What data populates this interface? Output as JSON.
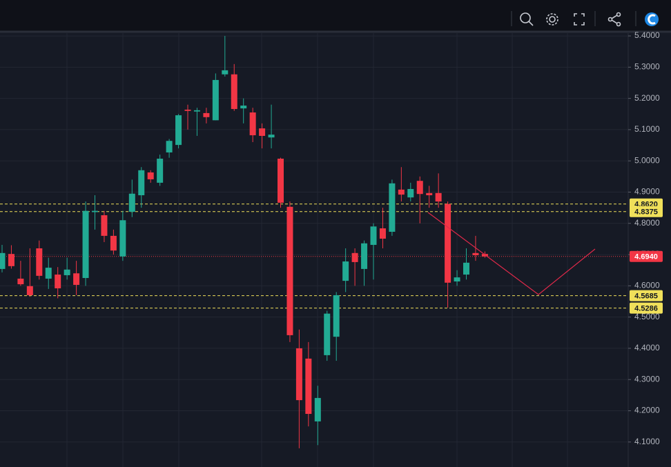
{
  "chart_data": {
    "type": "candlestick",
    "categories": [
      null,
      null,
      null,
      null,
      null,
      null,
      null,
      null,
      null,
      null,
      null,
      null,
      null,
      null,
      null,
      null,
      null,
      null,
      null,
      null,
      null,
      null,
      null,
      null,
      null,
      null,
      null,
      null,
      null,
      null,
      null,
      null,
      null,
      null,
      null,
      null,
      null,
      null,
      null,
      null,
      null,
      null,
      null,
      null,
      null,
      null,
      null,
      null,
      null,
      null,
      null,
      null,
      null
    ],
    "open": [
      4.654,
      4.702,
      4.623,
      4.599,
      4.72,
      4.623,
      4.636,
      4.634,
      4.64,
      4.625,
      4.836,
      4.826,
      4.76,
      4.694,
      4.837,
      4.89,
      4.963,
      4.93,
      5.027,
      5.051,
      5.164,
      5.158,
      5.153,
      5.13,
      5.277,
      5.277,
      5.168,
      5.155,
      5.104,
      5.075,
      5.007,
      4.853,
      4.4,
      4.367,
      4.166,
      4.378,
      4.437,
      4.616,
      4.705,
      4.654,
      4.731,
      4.784,
      4.773,
      4.908,
      4.883,
      4.936,
      4.897,
      4.897,
      4.862,
      4.614,
      4.636,
      4.705,
      4.702
    ],
    "high": [
      4.731,
      4.73,
      4.68,
      4.72,
      4.745,
      4.69,
      4.66,
      4.69,
      4.68,
      4.87,
      4.89,
      4.84,
      4.78,
      4.84,
      4.94,
      4.98,
      4.97,
      5.02,
      5.07,
      5.15,
      5.18,
      5.17,
      5.17,
      5.28,
      5.4,
      5.31,
      5.2,
      5.17,
      5.12,
      5.18,
      5.01,
      4.87,
      4.46,
      4.42,
      4.28,
      4.52,
      4.58,
      4.72,
      4.72,
      4.745,
      4.8,
      4.85,
      4.94,
      4.98,
      4.93,
      4.95,
      4.92,
      4.96,
      4.87,
      4.65,
      4.72,
      4.76,
      4.71
    ],
    "low": [
      4.643,
      4.655,
      4.6,
      4.565,
      4.62,
      4.59,
      4.56,
      4.62,
      4.57,
      4.6,
      4.78,
      4.74,
      4.7,
      4.68,
      4.82,
      4.85,
      4.93,
      4.92,
      5.01,
      5.04,
      5.1,
      5.08,
      5.12,
      5.13,
      5.27,
      5.16,
      5.12,
      5.06,
      5.04,
      5.04,
      4.85,
      4.42,
      4.08,
      4.15,
      4.09,
      4.36,
      4.36,
      4.58,
      4.6,
      4.6,
      4.62,
      4.72,
      4.76,
      4.87,
      4.87,
      4.8,
      4.85,
      4.85,
      4.53,
      4.6,
      4.62,
      4.68,
      4.69
    ],
    "close": [
      4.705,
      4.663,
      4.605,
      4.57,
      4.632,
      4.658,
      4.592,
      4.652,
      4.603,
      4.84,
      4.84,
      4.76,
      4.713,
      4.81,
      4.895,
      4.97,
      4.941,
      5.007,
      5.064,
      5.146,
      5.16,
      5.162,
      5.14,
      5.259,
      5.29,
      5.166,
      5.177,
      5.082,
      5.08,
      5.084,
      4.866,
      4.442,
      4.234,
      4.19,
      4.241,
      4.511,
      4.57,
      4.678,
      4.676,
      4.736,
      4.79,
      4.751,
      4.928,
      4.892,
      4.91,
      4.894,
      4.89,
      4.87,
      4.61,
      4.627,
      4.674,
      4.698,
      4.694
    ],
    "up_color": "#22ab94",
    "down_color": "#f23645",
    "ylim": [
      4.02,
      5.409
    ],
    "yticks": [
      {
        "value": 4.1,
        "label": "4.1000"
      },
      {
        "value": 4.2,
        "label": "4.2000"
      },
      {
        "value": 4.3,
        "label": "4.3000"
      },
      {
        "value": 4.4,
        "label": "4.4000"
      },
      {
        "value": 4.5,
        "label": "4.5000"
      },
      {
        "value": 4.6,
        "label": "4.6000"
      },
      {
        "value": 4.7,
        "label": "4.7000"
      },
      {
        "value": 4.8,
        "label": "4.8000"
      },
      {
        "value": 4.9,
        "label": "4.9000"
      },
      {
        "value": 5.0,
        "label": "5.0000"
      },
      {
        "value": 5.1,
        "label": "5.1000"
      },
      {
        "value": 5.2,
        "label": "5.2000"
      },
      {
        "value": 5.3,
        "label": "5.3000"
      },
      {
        "value": 5.4,
        "label": "5.4000"
      }
    ],
    "grid": true,
    "levels": [
      {
        "value": 4.862,
        "label": "4.8620",
        "color": "#f0e05a",
        "style": "dashed"
      },
      {
        "value": 4.8375,
        "label": "4.8375",
        "color": "#f0e05a",
        "style": "dashed"
      },
      {
        "value": 4.694,
        "label": "4.6940",
        "color": "#f23645",
        "style": "dotted"
      },
      {
        "value": 4.5685,
        "label": "4.5685",
        "color": "#f0e05a",
        "style": "dashed"
      },
      {
        "value": 4.5286,
        "label": "4.5286",
        "color": "#f0e05a",
        "style": "dashed"
      }
    ]
  }
}
